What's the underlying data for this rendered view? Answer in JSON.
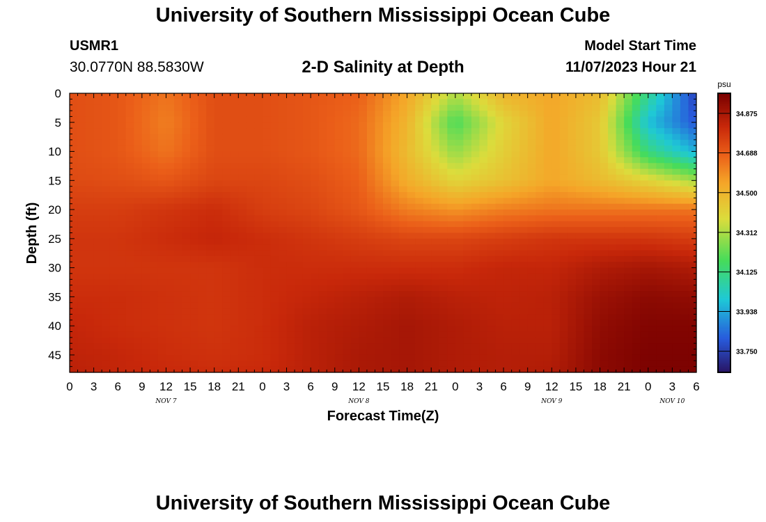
{
  "header": {
    "title": "University of Southern Mississippi Ocean Cube",
    "station_id": "USMR1",
    "coordinates": "30.0770N  88.5830W",
    "subtitle": "2-D Salinity at Depth",
    "model_start_label": "Model Start Time",
    "model_start_value": "11/07/2023 Hour 21"
  },
  "footer": {
    "title": "University of Southern Mississippi Ocean Cube"
  },
  "chart_data": {
    "type": "heatmap",
    "title": "2-D Salinity at Depth",
    "xlabel": "Forecast Time(Z)",
    "ylabel": "Depth (ft)",
    "x_tick_labels": [
      "0",
      "3",
      "6",
      "9",
      "12",
      "15",
      "18",
      "21",
      "0",
      "3",
      "6",
      "9",
      "12",
      "15",
      "18",
      "21",
      "0",
      "3",
      "6",
      "9",
      "12",
      "15",
      "18",
      "21",
      "0",
      "3",
      "6"
    ],
    "x_day_labels": [
      {
        "label": "NOV 7",
        "hour_index": 4
      },
      {
        "label": "NOV 8",
        "hour_index": 12
      },
      {
        "label": "NOV 9",
        "hour_index": 20
      },
      {
        "label": "NOV 10",
        "hour_index": 25
      }
    ],
    "x_range_hours": [
      0,
      78
    ],
    "y_ticks": [
      0,
      5,
      10,
      15,
      20,
      25,
      30,
      35,
      40,
      45
    ],
    "y_range": [
      0,
      48
    ],
    "y_inverted": true,
    "colorbar": {
      "unit": "psu",
      "tick_labels": [
        "34.875",
        "34.688",
        "34.500",
        "34.312",
        "34.125",
        "33.938",
        "33.750"
      ],
      "range": [
        33.65,
        34.97
      ]
    },
    "field": {
      "x_hours": [
        0,
        6,
        12,
        18,
        24,
        30,
        36,
        42,
        48,
        54,
        60,
        66,
        72,
        78
      ],
      "depths": [
        0,
        5,
        10,
        15,
        20,
        25,
        30,
        35,
        40,
        45,
        48
      ],
      "values": [
        [
          34.72,
          34.7,
          34.64,
          34.72,
          34.72,
          34.7,
          34.68,
          34.54,
          34.32,
          34.5,
          34.54,
          34.48,
          34.1,
          33.75
        ],
        [
          34.72,
          34.7,
          34.62,
          34.72,
          34.72,
          34.7,
          34.66,
          34.5,
          34.18,
          34.4,
          34.54,
          34.44,
          33.98,
          33.8
        ],
        [
          34.72,
          34.7,
          34.64,
          34.72,
          34.72,
          34.7,
          34.66,
          34.48,
          34.28,
          34.42,
          34.54,
          34.44,
          34.12,
          33.95
        ],
        [
          34.73,
          34.72,
          34.7,
          34.74,
          34.74,
          34.72,
          34.68,
          34.52,
          34.4,
          34.46,
          34.54,
          34.48,
          34.4,
          34.3
        ],
        [
          34.76,
          34.76,
          34.78,
          34.8,
          34.76,
          34.74,
          34.7,
          34.62,
          34.58,
          34.62,
          34.64,
          34.64,
          34.64,
          34.64
        ],
        [
          34.78,
          34.78,
          34.8,
          34.82,
          34.8,
          34.78,
          34.76,
          34.74,
          34.74,
          34.76,
          34.78,
          34.78,
          34.78,
          34.76
        ],
        [
          34.78,
          34.78,
          34.78,
          34.78,
          34.8,
          34.8,
          34.8,
          34.8,
          34.8,
          34.82,
          34.82,
          34.86,
          34.88,
          34.86
        ],
        [
          34.8,
          34.8,
          34.79,
          34.78,
          34.8,
          34.82,
          34.84,
          34.86,
          34.84,
          34.83,
          34.84,
          34.9,
          34.93,
          34.92
        ],
        [
          34.82,
          34.8,
          34.79,
          34.78,
          34.8,
          34.84,
          34.86,
          34.88,
          34.86,
          34.84,
          34.84,
          34.92,
          34.95,
          34.95
        ],
        [
          34.83,
          34.82,
          34.8,
          34.79,
          34.8,
          34.84,
          34.87,
          34.88,
          34.86,
          34.85,
          34.85,
          34.93,
          34.96,
          34.96
        ],
        [
          34.84,
          34.82,
          34.81,
          34.8,
          34.81,
          34.84,
          34.87,
          34.88,
          34.86,
          34.85,
          34.86,
          34.93,
          34.96,
          34.96
        ]
      ]
    }
  }
}
